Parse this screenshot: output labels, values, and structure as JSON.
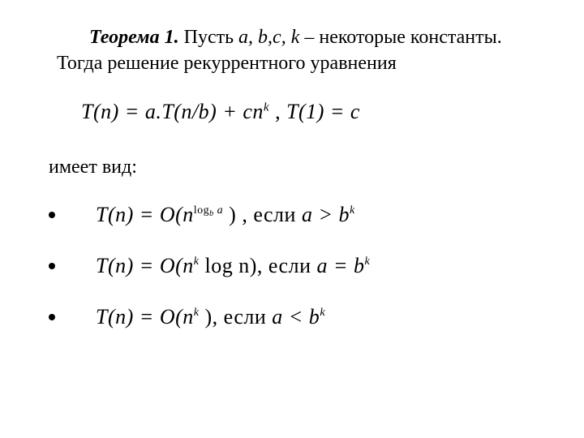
{
  "theorem": {
    "label": "Теорема 1.",
    "text_prefix": " Пусть ",
    "vars": "a, b,c, k",
    "text_mid": " – некоторые константы. Тогда решение рекуррентного уравнения"
  },
  "main_equation": {
    "lhs": "T(n) = a.T(n/b) + cn",
    "exp": "k",
    "sep": " ,  ",
    "rhs": "T(1) = c"
  },
  "has_form": "имеет вид:",
  "cases": [
    {
      "prefix": "T(n) = O(n",
      "sup1": "log",
      "sup1sub": "b",
      "sup1tail": " a",
      "mid": " ) , если ",
      "cond_lhs": "a > b",
      "cond_exp": "k"
    },
    {
      "prefix": "T(n) = O(n",
      "sup1": "k",
      "sup1sub": "",
      "sup1tail": "",
      "mid": " log n), если ",
      "cond_lhs": "a = b",
      "cond_exp": "k"
    },
    {
      "prefix": "T(n) = O(n",
      "sup1": "k",
      "sup1sub": "",
      "sup1tail": "",
      "mid": " ), если ",
      "cond_lhs": "a < b",
      "cond_exp": "k"
    }
  ],
  "style": {
    "background_color": "#ffffff",
    "text_color": "#000000",
    "body_fontsize": 24,
    "equation_fontsize": 26,
    "bullet_color": "#000000",
    "bullet_radius": 4
  }
}
